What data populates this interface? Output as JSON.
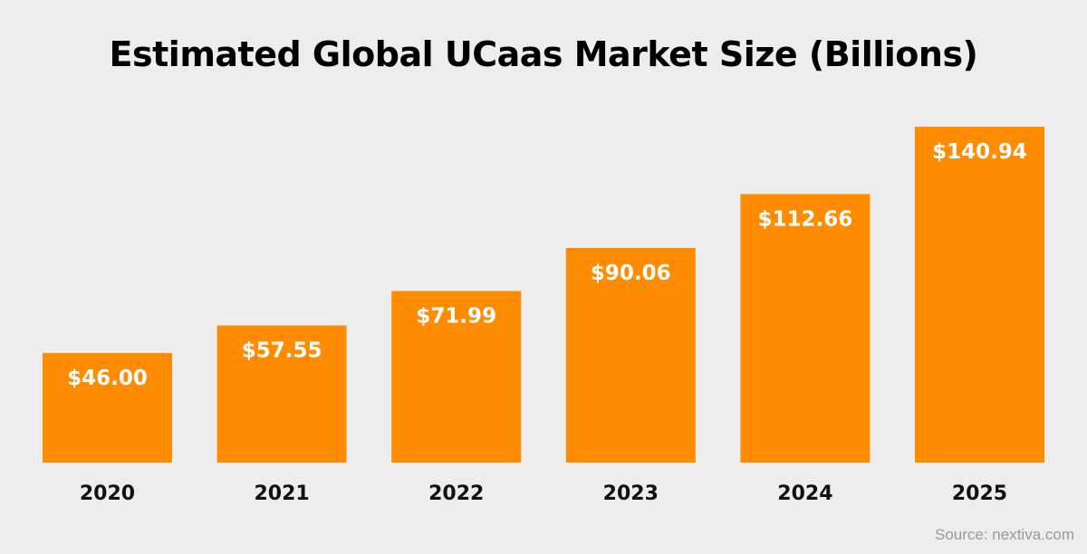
{
  "colors": {
    "background": "#ededed",
    "bar": "#ff8c00",
    "bar_label": "#ffffff",
    "tick_label": "#111111",
    "source": "#9a9a9a"
  },
  "chart_data": {
    "type": "bar",
    "title": "Estimated Global UCaas Market Size (Billions)",
    "categories": [
      "2020",
      "2021",
      "2022",
      "2023",
      "2024",
      "2025"
    ],
    "values": [
      46.0,
      57.55,
      71.99,
      90.06,
      112.66,
      140.94
    ],
    "data_labels": [
      "$46.00",
      "$57.55",
      "$71.99",
      "$90.06",
      "$112.66",
      "$140.94"
    ],
    "xlabel": "",
    "ylabel": "",
    "ylim": [
      0,
      140.94
    ],
    "grid": false,
    "legend": "none"
  },
  "source": "Source: nextiva.com"
}
